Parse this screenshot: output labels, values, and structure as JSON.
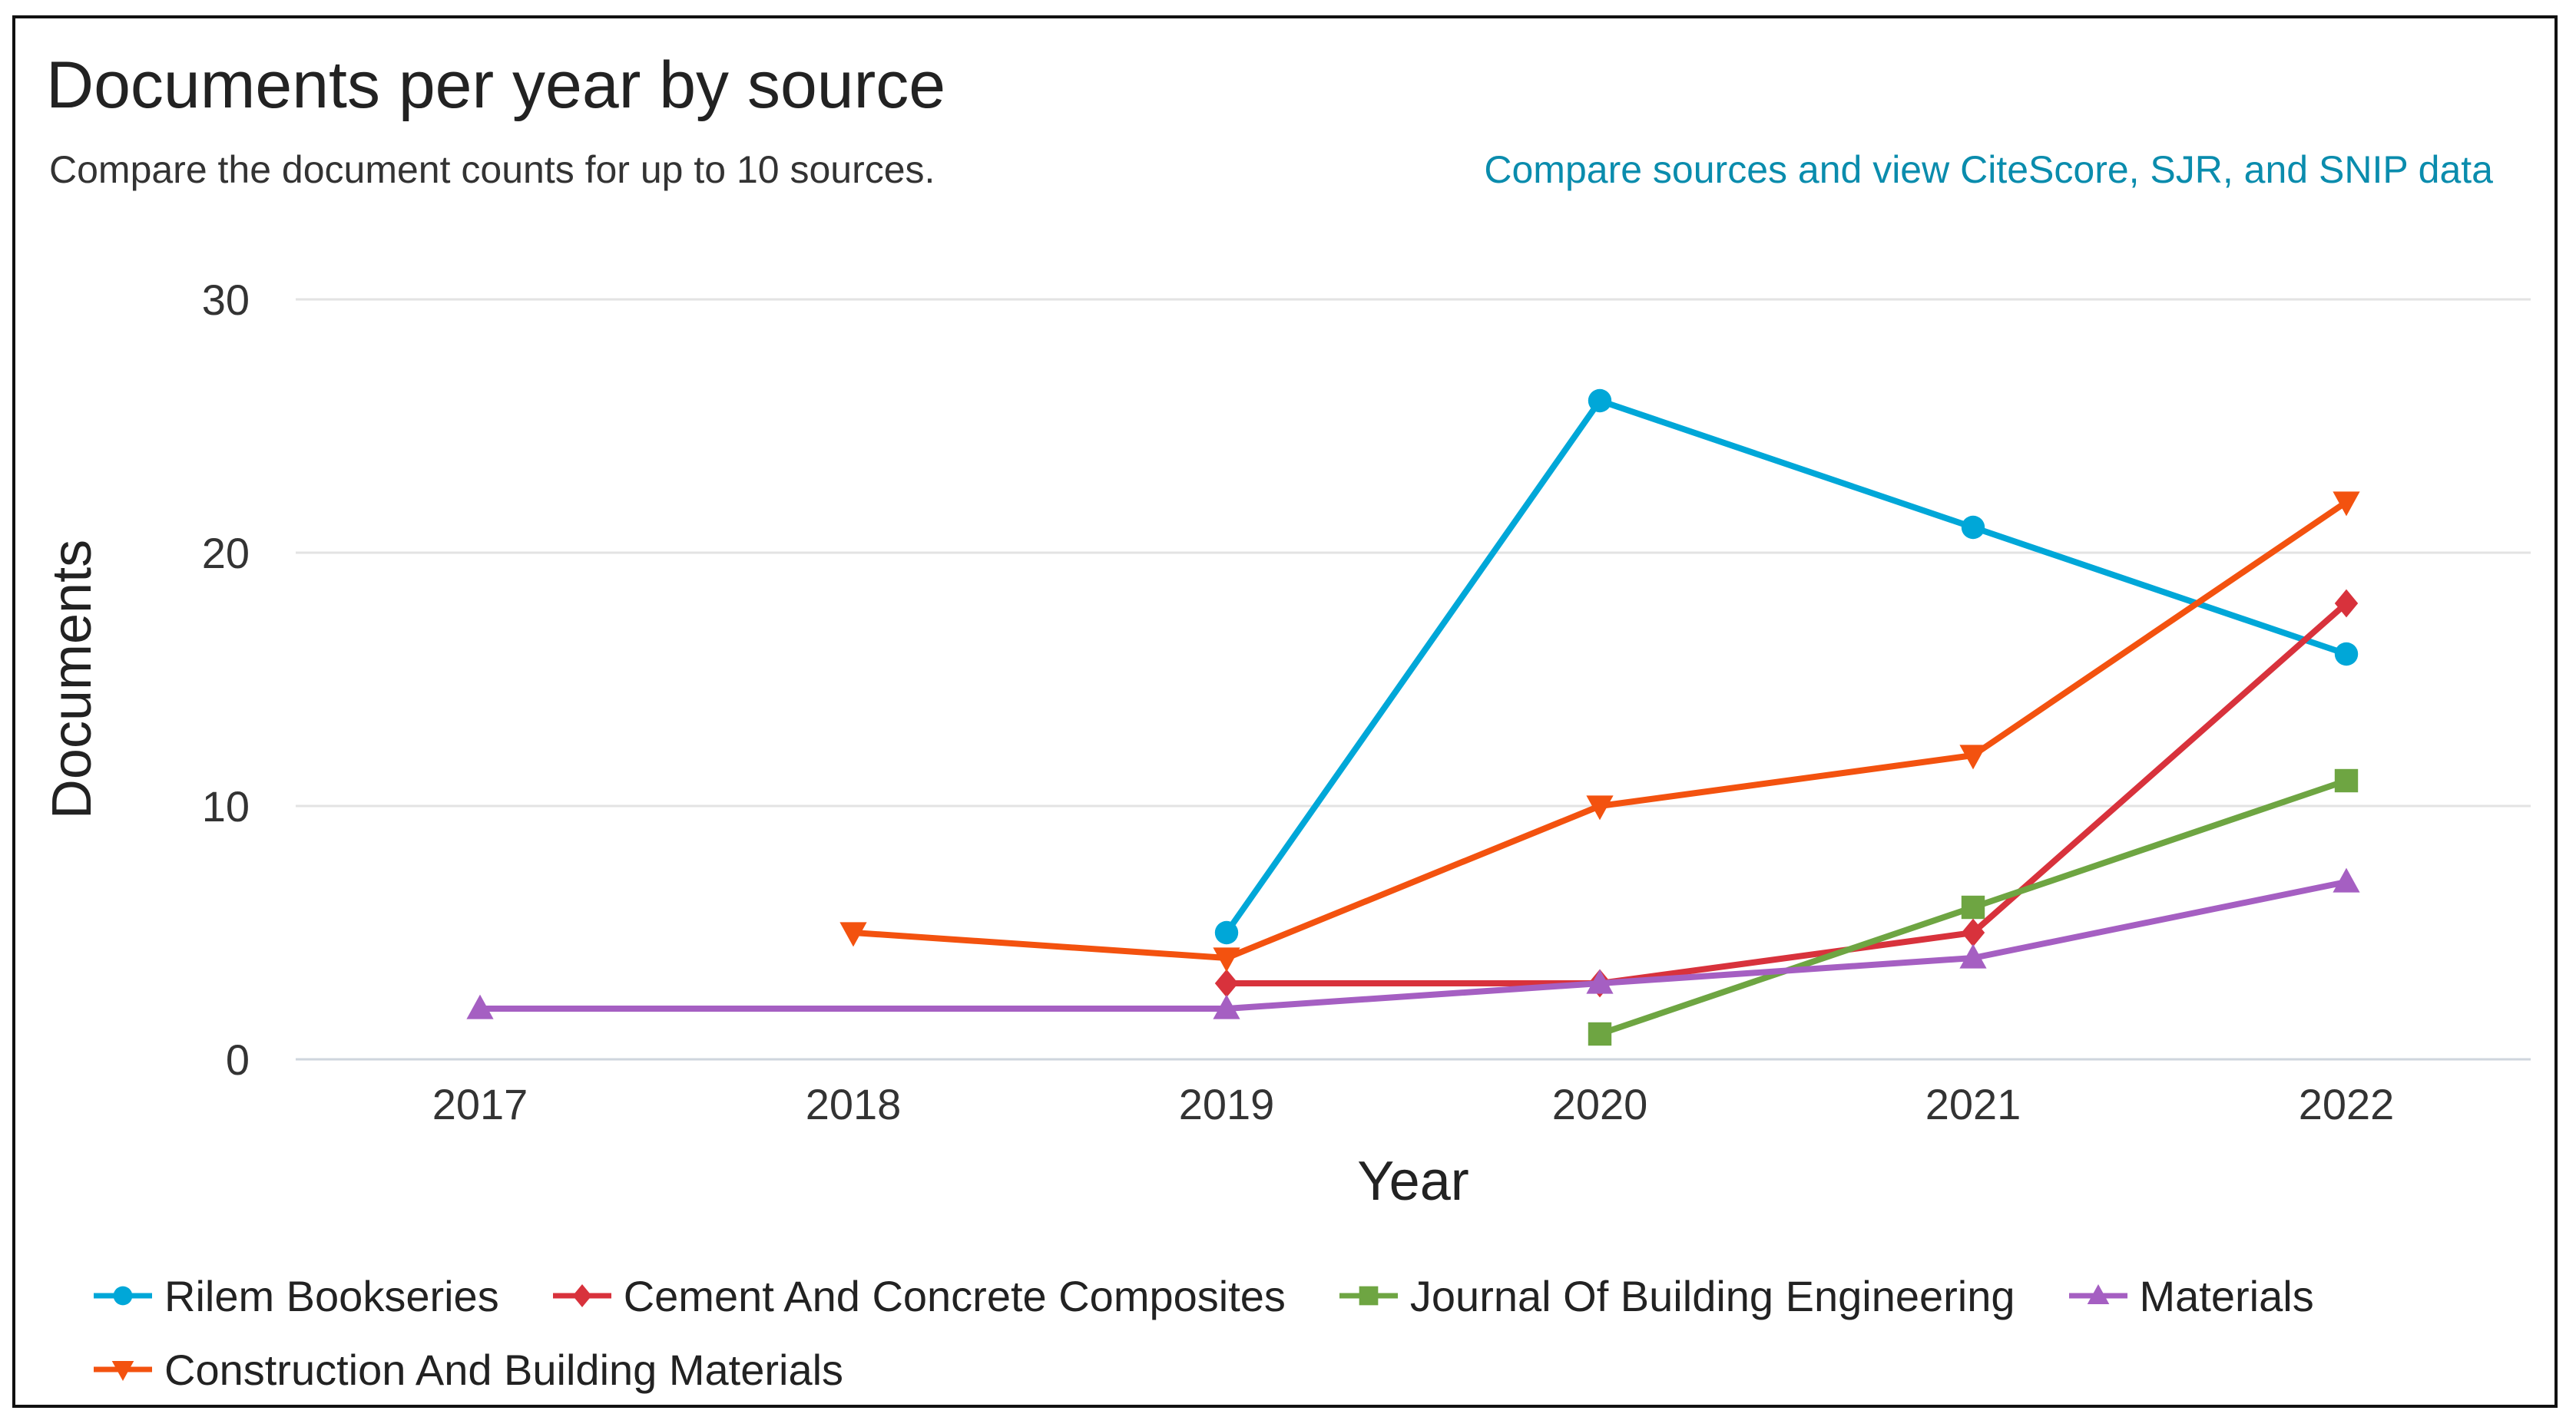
{
  "header": {
    "title": "Documents per year by source",
    "subtitle": "Compare the document counts for up to 10 sources.",
    "compare_link": "Compare sources and view CiteScore, SJR, and SNIP data"
  },
  "chart_data": {
    "type": "line",
    "title": "Documents per year by source",
    "xlabel": "Year",
    "ylabel": "Documents",
    "ylim": [
      0,
      30
    ],
    "yticks": [
      0,
      10,
      20,
      30
    ],
    "x": [
      2017,
      2018,
      2019,
      2020,
      2021,
      2022
    ],
    "grid": "horizontal",
    "legend_position": "bottom",
    "series": [
      {
        "name": "Rilem Bookseries",
        "color": "#00a7d8",
        "marker": "circle",
        "values": [
          null,
          null,
          5,
          26,
          21,
          16
        ]
      },
      {
        "name": "Cement And Concrete Composites",
        "color": "#d8323c",
        "marker": "diamond",
        "values": [
          null,
          null,
          3,
          3,
          5,
          18
        ]
      },
      {
        "name": "Journal Of Building Engineering",
        "color": "#6ea542",
        "marker": "square",
        "values": [
          null,
          null,
          null,
          1,
          6,
          11
        ]
      },
      {
        "name": "Materials",
        "color": "#a55fc2",
        "marker": "triangle-up",
        "values": [
          2,
          null,
          2,
          3,
          4,
          7
        ]
      },
      {
        "name": "Construction And Building Materials",
        "color": "#f3520f",
        "marker": "triangle-down",
        "values": [
          null,
          5,
          4,
          10,
          12,
          22
        ]
      }
    ]
  }
}
